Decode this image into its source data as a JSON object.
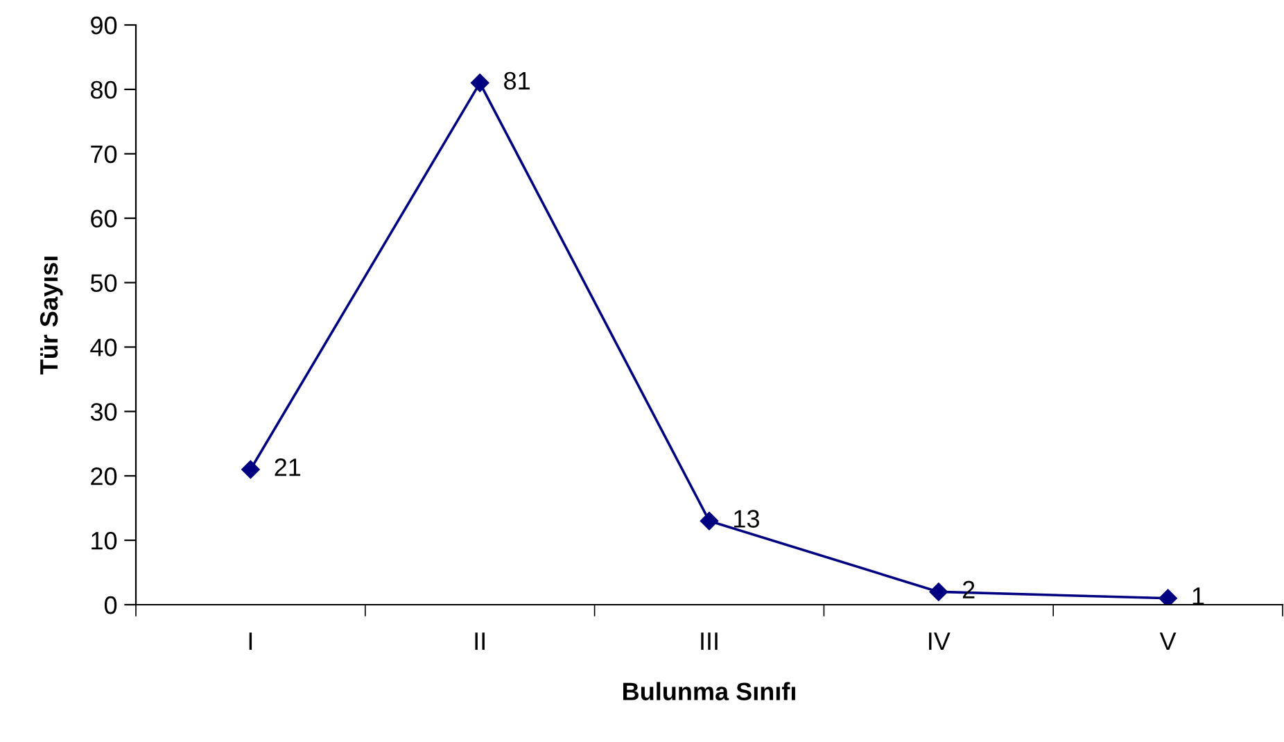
{
  "chart_data": {
    "type": "line",
    "xlabel": "Bulunma Sınıfı",
    "ylabel": "Tür Sayısı",
    "categories": [
      "I",
      "II",
      "III",
      "IV",
      "V"
    ],
    "series": [
      {
        "color": "#000080",
        "values": [
          21,
          81,
          13,
          2,
          1
        ]
      }
    ],
    "ylim": [
      0,
      90
    ],
    "yticks": [
      0,
      10,
      20,
      30,
      40,
      50,
      60,
      70,
      80,
      90
    ],
    "grid": false,
    "legend": false,
    "marker": "diamond",
    "line_style": "solid",
    "data_labels": true
  }
}
